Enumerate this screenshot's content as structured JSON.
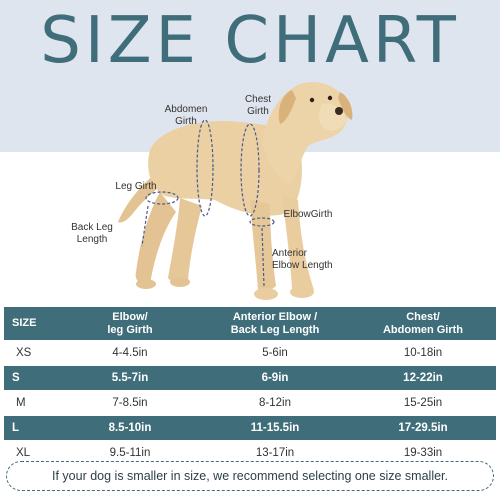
{
  "title": "SIZE CHART",
  "labels": {
    "abdomen_girth": [
      "Abdomen",
      "Girth"
    ],
    "chest_girth": [
      "Chest",
      "Girth"
    ],
    "leg_girth": "Leg Girth",
    "back_leg_length": [
      "Back Leg",
      "Length"
    ],
    "elbow_girth": "ElbowGirth",
    "anterior_elbow_length": [
      "Anterior",
      "Elbow Length"
    ]
  },
  "table": {
    "headers": {
      "size": "SIZE",
      "elbow": [
        "Elbow/",
        "leg Girth"
      ],
      "anterior": [
        "Anterior Elbow /",
        "Back Leg Length"
      ],
      "chest": [
        "Chest/",
        "Abdomen Girth"
      ]
    },
    "rows": [
      {
        "size": "XS",
        "elbow": "4-4.5in",
        "anterior": "5-6in",
        "chest": "10-18in"
      },
      {
        "size": "S",
        "elbow": "5.5-7in",
        "anterior": "6-9in",
        "chest": "12-22in"
      },
      {
        "size": "M",
        "elbow": "7-8.5in",
        "anterior": "8-12in",
        "chest": "15-25in"
      },
      {
        "size": "L",
        "elbow": "8.5-10in",
        "anterior": "11-15.5in",
        "chest": "17-29.5in"
      },
      {
        "size": "XL",
        "elbow": "9.5-11in",
        "anterior": "13-17in",
        "chest": "19-33in"
      }
    ]
  },
  "note": "If your dog is smaller in size, we recommend selecting one size smaller.",
  "colors": {
    "teal": "#3f6d7a",
    "band": "#dfe5ee",
    "dog_fur": "#e8cc9e",
    "measure_line": "#4a5a8a"
  }
}
